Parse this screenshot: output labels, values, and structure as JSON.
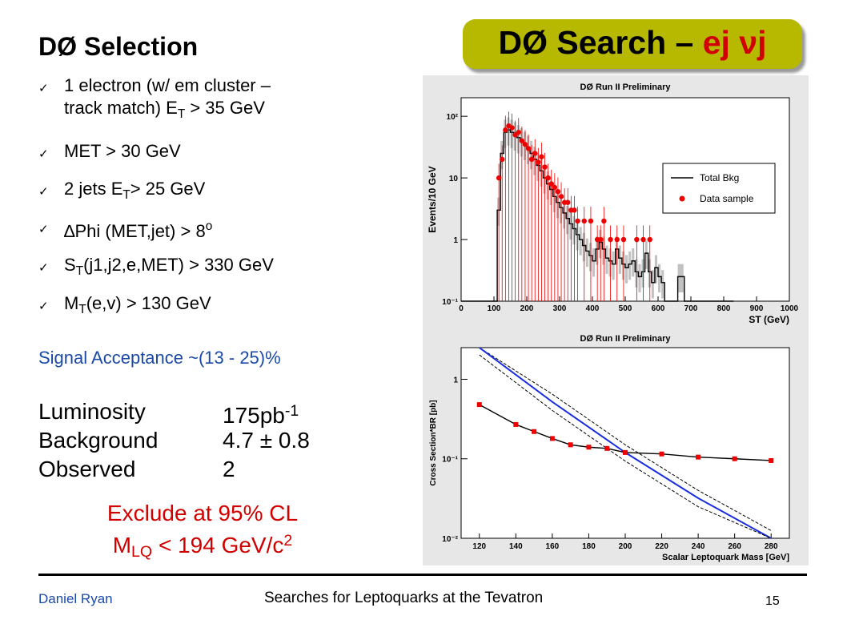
{
  "title": {
    "prefix": "DØ Search – ",
    "suffix": "ej νj"
  },
  "selection": {
    "heading": "DØ Selection",
    "criteria": [
      {
        "html": "1 electron (w/ em cluster –",
        "line2": "track match) E<sub>T</sub> &gt; 35 GeV"
      },
      {
        "html": "MET &gt; 30 GeV"
      },
      {
        "html": "2 jets E<sub>T</sub>&gt; 25 GeV"
      },
      {
        "html": "∆Phi (MET,jet) &gt; 8<sup>o</sup>"
      },
      {
        "html": "S<sub>T</sub>(j1,j2,e,MET) &gt; 330 GeV"
      },
      {
        "html": "M<sub>T</sub>(e,v) &gt; 130 GeV"
      }
    ]
  },
  "signal_acceptance": "Signal Acceptance ~(13 - 25)%",
  "stats": [
    {
      "label": "Luminosity",
      "value_html": "175pb<sup>-1</sup>"
    },
    {
      "label": "Background",
      "value_html": "4.7 ± 0.8"
    },
    {
      "label": "Observed",
      "value_html": "2"
    }
  ],
  "exclusion": {
    "line1": "Exclude at 95% CL",
    "line2_html": "M<sub>LQ</sub> &lt; 194 GeV/c<sup>2</sup>"
  },
  "footer": {
    "author": "Daniel Ryan",
    "talk": "Searches for Leptoquarks at the Tevatron",
    "page": "15"
  },
  "chart_data": [
    {
      "type": "line",
      "title": "DØ Run II Preliminary",
      "xlabel": "ST (GeV)",
      "ylabel": "Events/10 GeV",
      "xlim": [
        0,
        1000
      ],
      "ylim": [
        0.1,
        200
      ],
      "yscale": "log",
      "xticks": [
        0,
        100,
        200,
        300,
        400,
        500,
        600,
        700,
        800,
        900,
        1000
      ],
      "yticks": [
        {
          "v": 0.1,
          "l": "10⁻¹"
        },
        {
          "v": 1,
          "l": "1"
        },
        {
          "v": 10,
          "l": "10"
        },
        {
          "v": 100,
          "l": "10²"
        }
      ],
      "legend": {
        "position": "right",
        "entries": [
          "Total Bkg",
          "Data sample"
        ]
      },
      "series": [
        {
          "name": "Total Bkg",
          "x": [
            0,
            100,
            110,
            120,
            130,
            140,
            150,
            160,
            170,
            180,
            190,
            200,
            210,
            220,
            230,
            240,
            250,
            260,
            270,
            280,
            290,
            300,
            310,
            320,
            330,
            340,
            350,
            360,
            370,
            380,
            390,
            400,
            410,
            420,
            430,
            440,
            450,
            460,
            470,
            480,
            490,
            500,
            510,
            520,
            530,
            540,
            550,
            560,
            570,
            580,
            590,
            600,
            610,
            620,
            650,
            660,
            680,
            700,
            720,
            740,
            760,
            780,
            800,
            820
          ],
          "y": [
            0.1,
            0.1,
            3,
            25,
            55,
            60,
            55,
            50,
            45,
            40,
            35,
            30,
            25,
            20,
            16,
            13,
            10,
            8,
            6.5,
            5,
            4,
            3.3,
            2.7,
            2.2,
            1.8,
            1.5,
            1.2,
            1,
            0.8,
            0.65,
            0.55,
            0.45,
            0.7,
            0.9,
            0.7,
            0.5,
            0.45,
            0.4,
            0.7,
            0.5,
            0.4,
            0.35,
            0.4,
            0.45,
            0.3,
            0.25,
            0.3,
            0.6,
            0.3,
            0.2,
            0.35,
            0.25,
            0.2,
            0.1,
            0.1,
            0.25,
            0.1,
            0.1,
            0.1,
            0.1,
            0.1,
            0.1,
            0.1,
            0.1
          ]
        },
        {
          "name": "Data sample",
          "x": [
            115,
            125,
            135,
            145,
            155,
            165,
            175,
            185,
            195,
            205,
            215,
            225,
            235,
            245,
            255,
            265,
            275,
            285,
            295,
            305,
            315,
            325,
            335,
            345,
            355,
            375,
            395,
            415,
            425,
            435,
            455,
            475,
            495,
            535,
            555,
            575
          ],
          "y": [
            10,
            20,
            60,
            70,
            65,
            50,
            55,
            40,
            35,
            30,
            20,
            25,
            18,
            22,
            15,
            10,
            8,
            7,
            6,
            5,
            4,
            4,
            3,
            3,
            2,
            2,
            2,
            1,
            1,
            2,
            1,
            1,
            1,
            1,
            1,
            1
          ]
        }
      ]
    },
    {
      "type": "line",
      "title": "DØ Run II Preliminary",
      "xlabel": "Scalar Leptoquark Mass [GeV]",
      "ylabel": "Cross Section*BR [pb]",
      "xlim": [
        110,
        290
      ],
      "ylim": [
        0.01,
        2.5
      ],
      "yscale": "log",
      "xticks": [
        120,
        140,
        160,
        180,
        200,
        220,
        240,
        260,
        280
      ],
      "yticks": [
        {
          "v": 0.01,
          "l": "10⁻²"
        },
        {
          "v": 0.1,
          "l": "10⁻¹"
        },
        {
          "v": 1,
          "l": "1"
        }
      ],
      "series": [
        {
          "name": "",
          "x": [
            120,
            140,
            150,
            160,
            170,
            180,
            190,
            200,
            220,
            240,
            260,
            280
          ],
          "y": [
            0.48,
            0.27,
            0.22,
            0.18,
            0.15,
            0.14,
            0.135,
            0.12,
            0.115,
            0.105,
            0.1,
            0.095
          ]
        },
        {
          "name": "",
          "x": [
            120,
            160,
            200,
            240,
            280
          ],
          "y": [
            2.6,
            0.52,
            0.12,
            0.032,
            0.01
          ]
        }
      ]
    }
  ]
}
